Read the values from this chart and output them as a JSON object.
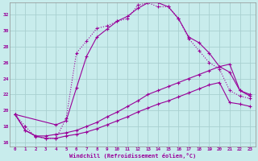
{
  "xlabel": "Windchill (Refroidissement éolien,°C)",
  "background_color": "#c8ecec",
  "line_color": "#990099",
  "grid_color": "#a8d0d0",
  "xlim": [
    -0.5,
    23.5
  ],
  "ylim": [
    15.5,
    33.5
  ],
  "xticks": [
    0,
    1,
    2,
    3,
    4,
    5,
    6,
    7,
    8,
    9,
    10,
    11,
    12,
    13,
    14,
    15,
    16,
    17,
    18,
    19,
    20,
    21,
    22,
    23
  ],
  "yticks": [
    16,
    18,
    20,
    22,
    24,
    26,
    28,
    30,
    32
  ],
  "series1_x": [
    0,
    1,
    2,
    3,
    4,
    5,
    6,
    7,
    8,
    9,
    10,
    11,
    12,
    13,
    14,
    15,
    16,
    17,
    18,
    19,
    20,
    21,
    22,
    23
  ],
  "series1_y": [
    19.5,
    18.0,
    16.7,
    16.5,
    16.5,
    19.0,
    27.2,
    28.7,
    30.3,
    30.6,
    31.2,
    31.5,
    33.2,
    33.5,
    33.0,
    33.0,
    31.5,
    29.0,
    27.5,
    26.0,
    25.2,
    22.5,
    21.8,
    21.5
  ],
  "series2_x": [
    0,
    4,
    5,
    6,
    7,
    8,
    9,
    10,
    11,
    12,
    13,
    14,
    15,
    16,
    17,
    18,
    19,
    20,
    21,
    22,
    23
  ],
  "series2_y": [
    19.5,
    18.2,
    18.7,
    22.8,
    26.8,
    29.2,
    30.2,
    31.2,
    31.8,
    32.8,
    33.5,
    33.5,
    33.0,
    31.5,
    29.2,
    28.5,
    27.2,
    25.5,
    24.8,
    22.5,
    21.8
  ],
  "series3_x": [
    0,
    1,
    2,
    3,
    4,
    5,
    6,
    7,
    8,
    9,
    10,
    11,
    12,
    13,
    14,
    15,
    16,
    17,
    18,
    19,
    20,
    21,
    22,
    23
  ],
  "series3_y": [
    19.5,
    17.5,
    16.8,
    16.8,
    17.0,
    17.2,
    17.5,
    18.0,
    18.5,
    19.2,
    19.8,
    20.5,
    21.2,
    22.0,
    22.5,
    23.0,
    23.5,
    24.0,
    24.5,
    25.0,
    25.5,
    25.8,
    22.5,
    22.0
  ],
  "series4_x": [
    0,
    1,
    2,
    3,
    4,
    5,
    6,
    7,
    8,
    9,
    10,
    11,
    12,
    13,
    14,
    15,
    16,
    17,
    18,
    19,
    20,
    21,
    22,
    23
  ],
  "series4_y": [
    19.5,
    17.5,
    16.8,
    16.5,
    16.5,
    16.8,
    17.0,
    17.3,
    17.7,
    18.2,
    18.7,
    19.2,
    19.8,
    20.3,
    20.8,
    21.2,
    21.7,
    22.2,
    22.7,
    23.2,
    23.5,
    21.0,
    20.8,
    20.5
  ]
}
